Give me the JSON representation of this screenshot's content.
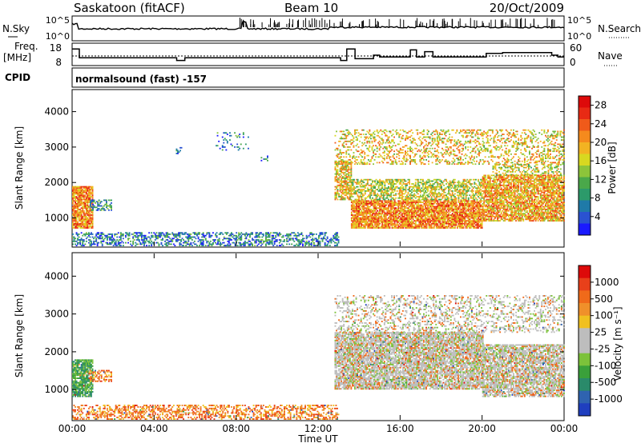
{
  "header": {
    "station": "Saskatoon (fitACF)",
    "beam": "Beam 10",
    "date": "20/Oct/2009"
  },
  "params": {
    "nsky_label": "N.Sky",
    "nsky_ticks": [
      "10^5",
      "10^0"
    ],
    "nsearch_label": "N.Search",
    "freq_label": "Freq.",
    "freq_unit": "[MHz]",
    "freq_ticks": [
      "18",
      "8"
    ],
    "freq_range": [
      8,
      18
    ],
    "nave_label": "Nave",
    "nave_ticks": [
      "60",
      "0"
    ],
    "nave_range": [
      0,
      60
    ],
    "cpid_label": "CPID",
    "cpid_text": "normalsound (fast) -157",
    "freq_steps": [
      [
        0,
        16.5
      ],
      [
        0.35,
        11.5
      ],
      [
        5.1,
        10
      ],
      [
        5.5,
        11.5
      ],
      [
        13.1,
        10
      ],
      [
        13.4,
        16.5
      ],
      [
        13.8,
        11
      ],
      [
        14.7,
        13
      ],
      [
        15.0,
        12
      ],
      [
        16.5,
        16
      ],
      [
        16.8,
        12
      ],
      [
        17.2,
        15
      ],
      [
        17.6,
        12
      ],
      [
        20.2,
        14
      ],
      [
        21.0,
        14.5
      ],
      [
        23.4,
        13
      ],
      [
        23.7,
        12
      ]
    ]
  },
  "chart_data": [
    {
      "type": "heatmap",
      "name": "power",
      "xlabel": "",
      "ylabel": "Slant Range [km]",
      "x_ticks": [
        "00:00",
        "04:00",
        "08:00",
        "12:00",
        "16:00",
        "20:00",
        "00:00"
      ],
      "xlim": [
        0,
        24
      ],
      "ylim": [
        200,
        4600
      ],
      "y_ticks": [
        "1000",
        "2000",
        "3000",
        "4000"
      ],
      "colorbar": {
        "label": "Power [dB]",
        "ticks": [
          "4",
          "8",
          "12",
          "16",
          "20",
          "24",
          "28"
        ],
        "range": [
          0,
          30
        ],
        "colors": [
          "#1a1aff",
          "#2a52d1",
          "#1f7aa8",
          "#2c9a6a",
          "#4aa84a",
          "#8cc43a",
          "#d8d820",
          "#f2b322",
          "#f58a1d",
          "#f05a1a",
          "#e82a14",
          "#dd0a0a"
        ]
      },
      "regions": [
        {
          "t": [
            0.0,
            1.0
          ],
          "r": [
            700,
            1900
          ],
          "v": 22,
          "d": 0.85
        },
        {
          "t": [
            0.8,
            1.9
          ],
          "r": [
            1200,
            1500
          ],
          "v": 8,
          "d": 0.55
        },
        {
          "t": [
            0.0,
            13.0
          ],
          "r": [
            200,
            600
          ],
          "v": 6,
          "d": 0.45
        },
        {
          "t": [
            5.0,
            5.4
          ],
          "r": [
            2800,
            3000
          ],
          "v": 6,
          "d": 0.3
        },
        {
          "t": [
            7.0,
            8.6
          ],
          "r": [
            2900,
            3400
          ],
          "v": 6,
          "d": 0.15
        },
        {
          "t": [
            9.2,
            9.6
          ],
          "r": [
            2600,
            2750
          ],
          "v": 5,
          "d": 0.4
        },
        {
          "t": [
            12.8,
            24.0
          ],
          "r": [
            2500,
            3500
          ],
          "v": 18,
          "d": 0.3
        },
        {
          "t": [
            12.8,
            13.6
          ],
          "r": [
            1500,
            2600
          ],
          "v": 18,
          "d": 0.7
        },
        {
          "t": [
            13.6,
            20.0
          ],
          "r": [
            700,
            1500
          ],
          "v": 22,
          "d": 0.85
        },
        {
          "t": [
            13.6,
            20.0
          ],
          "r": [
            1500,
            2100
          ],
          "v": 16,
          "d": 0.55
        },
        {
          "t": [
            20.0,
            24.0
          ],
          "r": [
            900,
            2200
          ],
          "v": 20,
          "d": 0.75
        },
        {
          "t": [
            20.5,
            23.8
          ],
          "r": [
            2200,
            2500
          ],
          "v": 16,
          "d": 0.4
        }
      ]
    },
    {
      "type": "heatmap",
      "name": "velocity",
      "xlabel": "Time UT",
      "ylabel": "Slant Range [km]",
      "x_ticks": [
        "00:00",
        "04:00",
        "08:00",
        "12:00",
        "16:00",
        "20:00",
        "00:00"
      ],
      "xlim": [
        0,
        24
      ],
      "ylim": [
        200,
        4600
      ],
      "y_ticks": [
        "1000",
        "2000",
        "3000",
        "4000"
      ],
      "colorbar": {
        "label": "Velocity [m s⁻¹]",
        "ticks": [
          "1000",
          "500",
          "100",
          "25",
          "-25",
          "-100",
          "-500",
          "-1000"
        ],
        "colors": [
          "#1f3fbf",
          "#2f63b0",
          "#2a8a6a",
          "#3aa03a",
          "#7cc23a",
          "#bdbdbd",
          "#bdbdbd",
          "#f0c020",
          "#f0902a",
          "#f06a1a",
          "#e8401a",
          "#dd0a0a"
        ]
      },
      "regions": [
        {
          "t": [
            0.0,
            1.0
          ],
          "r": [
            800,
            1800
          ],
          "v": "green",
          "d": 0.85
        },
        {
          "t": [
            0.8,
            1.9
          ],
          "r": [
            1200,
            1500
          ],
          "v": "orange",
          "d": 0.55
        },
        {
          "t": [
            0.0,
            13.0
          ],
          "r": [
            200,
            600
          ],
          "v": "orange",
          "d": 0.45
        },
        {
          "t": [
            12.8,
            24.0
          ],
          "r": [
            2500,
            3500
          ],
          "v": "grey",
          "d": 0.3
        },
        {
          "t": [
            12.8,
            20.0
          ],
          "r": [
            1000,
            2500
          ],
          "v": "grey",
          "d": 0.8
        },
        {
          "t": [
            20.0,
            24.0
          ],
          "r": [
            800,
            2200
          ],
          "v": "grey",
          "d": 0.75
        }
      ]
    }
  ]
}
